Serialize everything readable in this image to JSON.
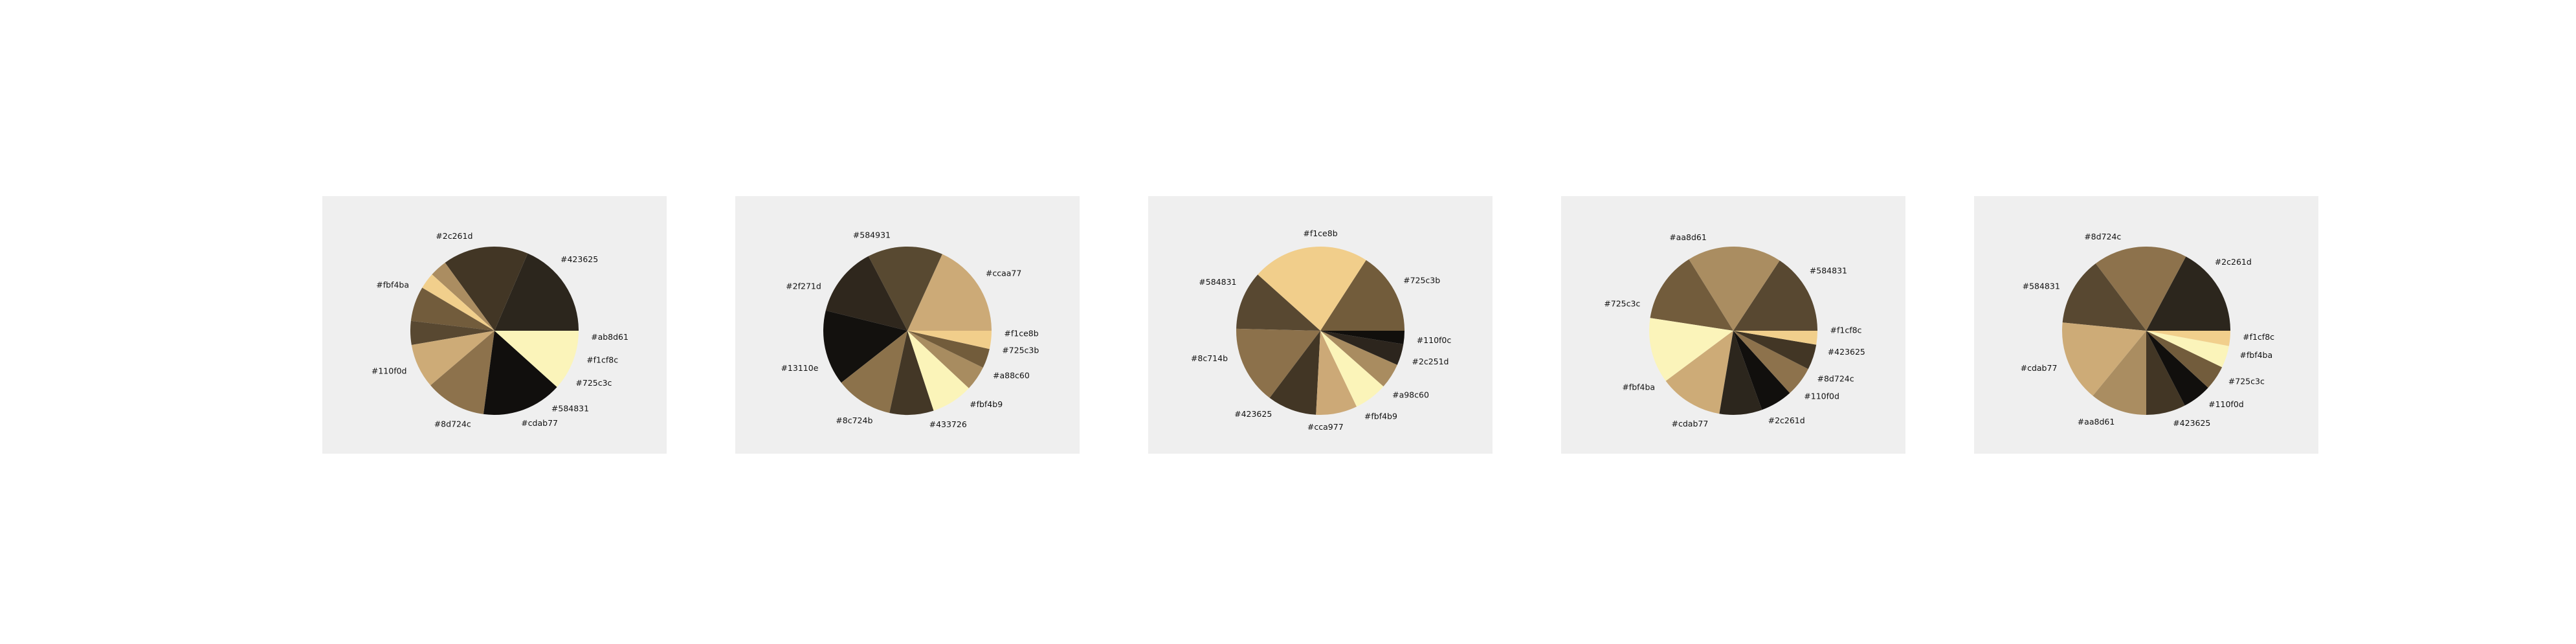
{
  "chart_data": [
    {
      "type": "pie",
      "start_angle_deg": 0,
      "labels": [
        "#2c261d",
        "#423625",
        "#ab8d61",
        "#f1cf8c",
        "#725c3c",
        "#584831",
        "#cdab77",
        "#8d724c",
        "#110f0d",
        "#fbf4ba"
      ],
      "colors": [
        "#2c261d",
        "#423625",
        "#ab8d61",
        "#f1cf8c",
        "#725c3c",
        "#584831",
        "#cdab77",
        "#8d724c",
        "#110f0d",
        "#fbf4ba"
      ],
      "values": [
        89,
        79,
        16,
        15,
        32,
        22,
        41,
        56,
        74,
        56
      ],
      "label_angles_deg": [
        103,
        47,
        356,
        342,
        327,
        306,
        286,
        256,
        205,
        152
      ]
    },
    {
      "type": "pie",
      "start_angle_deg": 0,
      "labels": [
        "#ccaa77",
        "#584931",
        "#2f271d",
        "#13110e",
        "#8c724b",
        "#433726",
        "#fbf4b9",
        "#a88c60",
        "#725c3b",
        "#f1ce8b"
      ],
      "colors": [
        "#ccaa77",
        "#584931",
        "#2f271d",
        "#13110e",
        "#8c724b",
        "#433726",
        "#fbf4b9",
        "#a88c60",
        "#725c3b",
        "#f1ce8b"
      ],
      "values": [
        73,
        58,
        54,
        58,
        44,
        34,
        32,
        19,
        15,
        14
      ],
      "label_angles_deg": [
        36,
        100,
        153,
        203,
        249,
        283,
        310,
        332,
        348,
        358
      ]
    },
    {
      "type": "pie",
      "start_angle_deg": 0,
      "labels": [
        "#725c3b",
        "#f1ce8b",
        "#584831",
        "#8c714b",
        "#423625",
        "#cca977",
        "#fbf4b9",
        "#a98c60",
        "#2c251d",
        "#110f0c"
      ],
      "colors": [
        "#725c3b",
        "#f1ce8b",
        "#584831",
        "#8c714b",
        "#423625",
        "#cca977",
        "#fbf4b9",
        "#a98c60",
        "#2c251d",
        "#110f0c"
      ],
      "values": [
        62,
        88,
        44,
        59,
        37,
        31,
        25,
        19,
        16,
        10
      ],
      "label_angles_deg": [
        31,
        90,
        150,
        197,
        240,
        273,
        297,
        318,
        341,
        354
      ]
    },
    {
      "type": "pie",
      "start_angle_deg": 0,
      "labels": [
        "#584831",
        "#aa8d61",
        "#725c3c",
        "#fbf4ba",
        "#cdab77",
        "#2c261d",
        "#110f0d",
        "#8d724c",
        "#423625",
        "#f1cf8c"
      ],
      "colors": [
        "#584831",
        "#aa8d61",
        "#725c3c",
        "#fbf4ba",
        "#cdab77",
        "#2c261d",
        "#110f0d",
        "#8d724c",
        "#423625",
        "#f1cf8c"
      ],
      "values": [
        71,
        82,
        62,
        57,
        55,
        37,
        28,
        26,
        22,
        12
      ],
      "label_angles_deg": [
        38,
        106,
        164,
        216,
        255,
        291,
        317,
        330,
        347,
        360
      ]
    },
    {
      "type": "pie",
      "start_angle_deg": 0,
      "labels": [
        "#2c261d",
        "#8d724c",
        "#584831",
        "#cdab77",
        "#aa8d61",
        "#423625",
        "#110f0d",
        "#725c3c",
        "#fbf4ba",
        "#f1cf8c"
      ],
      "colors": [
        "#2c261d",
        "#8d724c",
        "#584831",
        "#cdab77",
        "#aa8d61",
        "#423625",
        "#110f0d",
        "#725c3c",
        "#fbf4ba",
        "#f1cf8c"
      ],
      "values": [
        77,
        81,
        59,
        70,
        49,
        34,
        25,
        21,
        19,
        13
      ],
      "label_angles_deg": [
        45,
        105,
        153,
        203,
        251,
        286,
        310,
        328,
        345,
        356
      ]
    }
  ]
}
